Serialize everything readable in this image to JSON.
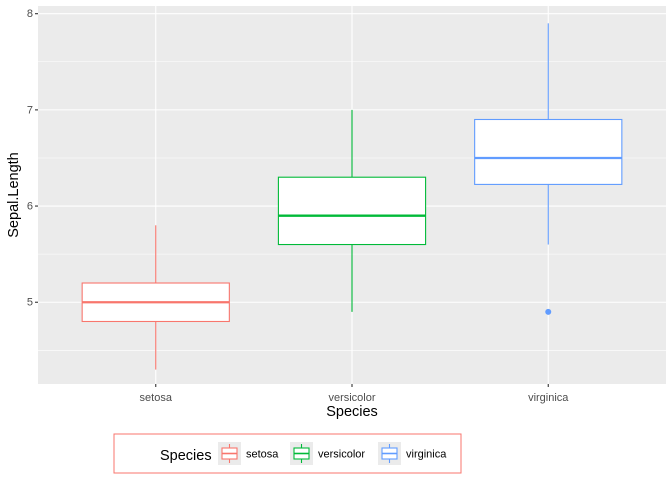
{
  "chart_data": {
    "type": "boxplot",
    "xlabel": "Species",
    "ylabel": "Sepal.Length",
    "categories": [
      "setosa",
      "versicolor",
      "virginica"
    ],
    "colors": [
      "#F8766D",
      "#00BA38",
      "#619CFF"
    ],
    "ylim": [
      4.15,
      8.08
    ],
    "yticks": [
      5,
      6,
      7,
      8
    ],
    "ytick_labels": [
      "5",
      "6",
      "7",
      "8"
    ],
    "grid": true,
    "boxes": [
      {
        "category": "setosa",
        "whisker_low": 4.3,
        "q1": 4.8,
        "median": 5.0,
        "q3": 5.2,
        "whisker_high": 5.8,
        "outliers": []
      },
      {
        "category": "versicolor",
        "whisker_low": 4.9,
        "q1": 5.6,
        "median": 5.9,
        "q3": 6.3,
        "whisker_high": 7.0,
        "outliers": []
      },
      {
        "category": "virginica",
        "whisker_low": 5.6,
        "q1": 6.225,
        "median": 6.5,
        "q3": 6.9,
        "whisker_high": 7.9,
        "outliers": [
          4.9
        ]
      }
    ],
    "legend": {
      "title": "Species",
      "position": "bottom",
      "entries": [
        "setosa",
        "versicolor",
        "virginica"
      ]
    }
  }
}
